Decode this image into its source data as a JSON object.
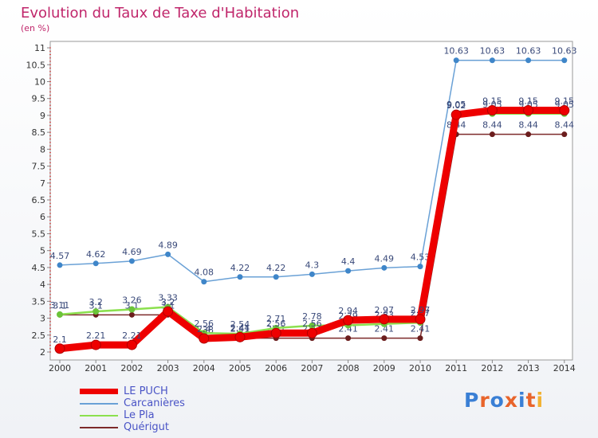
{
  "title": "Evolution du Taux de Taxe d'Habitation",
  "unit_label": "(en %)",
  "logo": {
    "letters": [
      "P",
      "r",
      "o",
      "x",
      "i",
      "t",
      "i"
    ],
    "colors": [
      "#3a7fd5",
      "#e8642b",
      "#3a7fd5",
      "#e8642b",
      "#3a7fd5",
      "#e8642b",
      "#f2b233"
    ]
  },
  "legend": [
    {
      "label": "LE PUCH",
      "color": "#ee0000"
    },
    {
      "label": "Carcanières",
      "color": "#6aa1d6"
    },
    {
      "label": "Le Pla",
      "color": "#8be04e"
    },
    {
      "label": "Quérigut",
      "color": "#7d2a2a"
    }
  ],
  "chart_data": {
    "type": "line",
    "x": [
      "2000",
      "2001",
      "2002",
      "2003",
      "2004",
      "2005",
      "2006",
      "2007",
      "2008",
      "2009",
      "2010",
      "2011",
      "2012",
      "2013",
      "2014"
    ],
    "y_ticks": [
      "2",
      "2.5",
      "3",
      "3.5",
      "4",
      "4.5",
      "5",
      "5.5",
      "6",
      "6.5",
      "7",
      "7.5",
      "8",
      "8.5",
      "9",
      "9.5",
      "10",
      "10.5",
      "11"
    ],
    "ylim": [
      2,
      11
    ],
    "grid": false,
    "series": [
      {
        "name": "Carcanières",
        "color": "#6aa1d6",
        "values": [
          4.57,
          4.62,
          4.69,
          4.89,
          4.08,
          4.22,
          4.22,
          4.3,
          4.4,
          4.49,
          4.53,
          10.63,
          10.63,
          10.63,
          10.63
        ],
        "labels": [
          "4.57",
          "4.62",
          "4.69",
          "4.89",
          "4.08",
          "4.22",
          "4.22",
          "4.3",
          "4.4",
          "4.49",
          "4.53",
          "10.63",
          "10.63",
          "10.63",
          "10.63"
        ]
      },
      {
        "name": "Quérigut",
        "color": "#7d2a2a",
        "values": [
          3.1,
          3.1,
          3.1,
          3.1,
          2.38,
          2.41,
          2.41,
          2.41,
          2.41,
          2.41,
          2.41,
          8.44,
          8.44,
          8.44,
          8.44
        ],
        "labels": [
          "3.1",
          "3.1",
          "3.1",
          "3.1",
          "2.38",
          "2.41",
          "2.41",
          "2.41",
          "2.41",
          "2.41",
          "2.41",
          "8.44",
          "8.44",
          "8.44",
          "8.44"
        ]
      },
      {
        "name": "Le Pla",
        "color": "#8be04e",
        "values": [
          3.11,
          3.2,
          3.26,
          3.33,
          2.56,
          2.54,
          2.71,
          2.78,
          2.79,
          2.83,
          2.87,
          9.05,
          9.05,
          9.05,
          9.05
        ],
        "labels": [
          "3.11",
          "3.2",
          "3.26",
          "3.33",
          "2.56",
          "2.54",
          "2.71",
          "2.78",
          "2.79",
          "2.83",
          "2.87",
          "9.05",
          "9.05",
          "9.05",
          "9.05"
        ]
      },
      {
        "name": "LE PUCH",
        "color": "#ee0000",
        "values": [
          2.1,
          2.21,
          2.21,
          3.2,
          2.4,
          2.44,
          2.56,
          2.56,
          2.94,
          2.97,
          2.97,
          9.02,
          9.15,
          9.15,
          9.15
        ],
        "labels": [
          "2.1",
          "2.21",
          "2.21",
          "3.2",
          "2.4",
          "2.44",
          "2.56",
          "2.56",
          "2.94",
          "2.97",
          "2.97",
          "9.02",
          "9.15",
          "9.15",
          "9.15"
        ]
      }
    ]
  }
}
